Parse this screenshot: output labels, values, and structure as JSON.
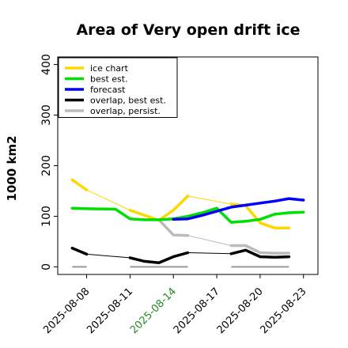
{
  "chart_data": {
    "type": "line",
    "title": "Area of Very open drift ice",
    "ylabel": "1000 km2",
    "ylim": [
      -15,
      415
    ],
    "yticks": [
      0,
      100,
      200,
      300,
      400
    ],
    "xlim": [
      "2025-08-06",
      "2025-08-24"
    ],
    "xticks": [
      {
        "label": "2025-08-08",
        "date": "2025-08-08",
        "color": "#000000"
      },
      {
        "label": "2025-08-11",
        "date": "2025-08-11",
        "color": "#000000"
      },
      {
        "label": "2025-08-14",
        "date": "2025-08-14",
        "color": "#228B22"
      },
      {
        "label": "2025-08-17",
        "date": "2025-08-17",
        "color": "#000000"
      },
      {
        "label": "2025-08-20",
        "date": "2025-08-20",
        "color": "#000000"
      },
      {
        "label": "2025-08-23",
        "date": "2025-08-23",
        "color": "#000000"
      }
    ],
    "grid": false,
    "legend_position": "top-left",
    "series": [
      {
        "name": "ice chart",
        "color": "#FFD700",
        "points": [
          [
            "2025-08-07",
            172
          ],
          [
            "2025-08-08",
            152
          ],
          [
            "2025-08-11",
            112
          ],
          [
            "2025-08-12",
            102
          ],
          [
            "2025-08-13",
            92
          ],
          [
            "2025-08-14",
            112
          ],
          [
            "2025-08-15",
            140
          ],
          [
            "2025-08-18",
            124
          ],
          [
            "2025-08-19",
            121
          ],
          [
            "2025-08-20",
            87
          ],
          [
            "2025-08-21",
            77
          ],
          [
            "2025-08-22",
            77
          ]
        ],
        "thick_segments": [
          [
            0,
            1
          ],
          [
            2,
            4
          ],
          [
            4,
            6
          ],
          [
            7,
            11
          ]
        ],
        "thin_segments": [
          [
            1,
            2
          ],
          [
            6,
            7
          ]
        ]
      },
      {
        "name": "best est.",
        "color": "#00E000",
        "points": [
          [
            "2025-08-07",
            116
          ],
          [
            "2025-08-08",
            115
          ],
          [
            "2025-08-10",
            114
          ],
          [
            "2025-08-11",
            95
          ],
          [
            "2025-08-12",
            93
          ],
          [
            "2025-08-13",
            93
          ],
          [
            "2025-08-14",
            95
          ],
          [
            "2025-08-15",
            100
          ],
          [
            "2025-08-16",
            107
          ],
          [
            "2025-08-17",
            116
          ],
          [
            "2025-08-18",
            88
          ],
          [
            "2025-08-19",
            90
          ],
          [
            "2025-08-20",
            94
          ],
          [
            "2025-08-21",
            104
          ],
          [
            "2025-08-22",
            107
          ],
          [
            "2025-08-23",
            108
          ]
        ]
      },
      {
        "name": "forecast",
        "color": "#0000FF",
        "points": [
          [
            "2025-08-14",
            94
          ],
          [
            "2025-08-15",
            95
          ],
          [
            "2025-08-16",
            102
          ],
          [
            "2025-08-17",
            110
          ],
          [
            "2025-08-18",
            118
          ],
          [
            "2025-08-19",
            122
          ],
          [
            "2025-08-20",
            126
          ],
          [
            "2025-08-21",
            130
          ],
          [
            "2025-08-22",
            135
          ],
          [
            "2025-08-23",
            132
          ]
        ]
      },
      {
        "name": "overlap, best est.",
        "color": "#000000",
        "points": [
          [
            "2025-08-07",
            37
          ],
          [
            "2025-08-08",
            25
          ],
          [
            "2025-08-11",
            18
          ],
          [
            "2025-08-12",
            11
          ],
          [
            "2025-08-13",
            8
          ],
          [
            "2025-08-14",
            20
          ],
          [
            "2025-08-15",
            28
          ],
          [
            "2025-08-18",
            26
          ],
          [
            "2025-08-19",
            33
          ],
          [
            "2025-08-20",
            20
          ],
          [
            "2025-08-21",
            19
          ],
          [
            "2025-08-22",
            20
          ]
        ],
        "thick_segments": [
          [
            0,
            1
          ],
          [
            2,
            4
          ],
          [
            4,
            6
          ],
          [
            7,
            11
          ]
        ],
        "thin_segments": [
          [
            1,
            2
          ],
          [
            6,
            7
          ]
        ]
      },
      {
        "name": "overlap, persist.",
        "color": "#BBBBBB",
        "points": [
          [
            "2025-08-13",
            93
          ],
          [
            "2025-08-14",
            63
          ],
          [
            "2025-08-15",
            62
          ],
          [
            "2025-08-18",
            42
          ],
          [
            "2025-08-19",
            42
          ],
          [
            "2025-08-20",
            28
          ],
          [
            "2025-08-21",
            27
          ],
          [
            "2025-08-22",
            27
          ]
        ],
        "thick_segments": [
          [
            0,
            2
          ],
          [
            3,
            7
          ]
        ],
        "thin_segments": [
          [
            2,
            3
          ]
        ]
      }
    ],
    "baseline_markers": {
      "color": "#999999",
      "value": 0,
      "ranges": [
        [
          "2025-08-07",
          "2025-08-08"
        ],
        [
          "2025-08-11",
          "2025-08-15"
        ],
        [
          "2025-08-18",
          "2025-08-22"
        ]
      ]
    }
  }
}
